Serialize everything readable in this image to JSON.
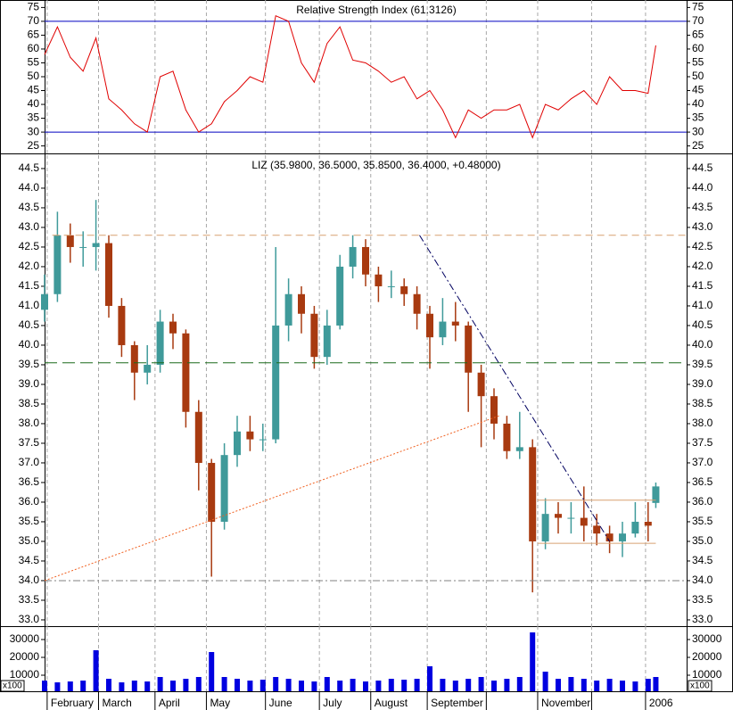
{
  "x_axis": {
    "x": [
      0,
      5,
      10,
      15,
      20,
      25,
      30,
      35,
      40,
      45,
      50,
      55,
      60,
      65,
      70,
      75,
      80,
      85,
      90,
      95,
      100,
      105,
      110,
      115,
      120,
      125,
      130,
      135,
      140,
      145,
      150,
      155,
      160,
      165,
      170,
      175,
      180,
      185,
      190,
      195,
      200,
      205,
      210,
      215,
      220,
      225,
      230,
      235,
      238
    ],
    "xlim": [
      0,
      250
    ],
    "xticks": [
      {
        "value": 1,
        "label": "February"
      },
      {
        "value": 21,
        "label": "March"
      },
      {
        "value": 43,
        "label": "April"
      },
      {
        "value": 63,
        "label": "May"
      },
      {
        "value": 86,
        "label": "June"
      },
      {
        "value": 107,
        "label": "July"
      },
      {
        "value": 127,
        "label": "August"
      },
      {
        "value": 149,
        "label": "September"
      },
      {
        "value": 172,
        "label": null
      },
      {
        "value": 192,
        "label": "November"
      },
      {
        "value": 213,
        "label": null
      },
      {
        "value": 234,
        "label": "2006"
      }
    ],
    "grid": true
  },
  "chart_data": [
    {
      "type": "line",
      "title": "Relative Strength Index (61.3126)",
      "color": "#e00000",
      "values": [
        58,
        68,
        57,
        52,
        64,
        42,
        38,
        33,
        30,
        50,
        52,
        38,
        30,
        33,
        41,
        45,
        50,
        48,
        72,
        70,
        55,
        48,
        62,
        68,
        56,
        55,
        52,
        48,
        50,
        42,
        45,
        38,
        28,
        38,
        35,
        38,
        38,
        40,
        28,
        40,
        38,
        42,
        45,
        40,
        50,
        45,
        45,
        44,
        61.3126
      ],
      "ref_lines": [
        70,
        30
      ],
      "ref_color": "#0000c0",
      "ylim": [
        22.3,
        77.7
      ],
      "yticks": [
        25,
        30,
        35,
        40,
        45,
        50,
        55,
        60,
        65,
        70,
        75
      ]
    },
    {
      "type": "candlestick",
      "title": "LIZ (35.9800, 36.5000, 35.8500, 36.4000, +0.48000)",
      "up_color": "#3f9a9a",
      "down_color": "#a83a10",
      "open": [
        40.9,
        41.3,
        42.8,
        42.5,
        42.5,
        42.6,
        41.0,
        40.0,
        39.3,
        39.5,
        40.6,
        40.3,
        38.3,
        37.0,
        35.5,
        37.2,
        37.8,
        37.6,
        37.6,
        40.5,
        41.3,
        40.8,
        39.7,
        40.5,
        42.0,
        42.5,
        41.8,
        41.5,
        41.5,
        41.3,
        40.8,
        40.2,
        40.6,
        40.5,
        39.3,
        38.7,
        38.0,
        37.3,
        37.4,
        35.0,
        35.7,
        35.6,
        35.6,
        35.4,
        35.2,
        35.0,
        35.2,
        35.5,
        35.98
      ],
      "high": [
        41.8,
        43.4,
        43.1,
        42.9,
        43.7,
        42.8,
        41.2,
        40.1,
        40.0,
        40.9,
        40.8,
        40.4,
        38.6,
        37.1,
        37.5,
        38.2,
        38.2,
        38.0,
        42.5,
        41.7,
        41.5,
        41.0,
        40.9,
        42.3,
        42.8,
        42.7,
        42.0,
        41.9,
        41.7,
        41.5,
        41.0,
        41.2,
        41.1,
        40.6,
        39.5,
        38.9,
        38.2,
        38.3,
        37.6,
        36.1,
        36.0,
        36.0,
        36.4,
        35.7,
        35.4,
        35.5,
        36.0,
        36.0,
        36.5
      ],
      "low": [
        40.6,
        41.1,
        42.1,
        42.0,
        41.9,
        40.7,
        39.7,
        38.6,
        39.0,
        39.3,
        39.9,
        37.9,
        36.3,
        34.1,
        35.3,
        36.9,
        37.3,
        37.3,
        37.5,
        40.1,
        40.3,
        39.4,
        39.5,
        40.4,
        41.7,
        41.5,
        41.1,
        41.2,
        41.0,
        40.4,
        39.4,
        40.0,
        40.1,
        38.3,
        37.4,
        37.6,
        37.1,
        37.1,
        33.7,
        34.8,
        35.2,
        35.2,
        35.0,
        34.9,
        34.7,
        34.6,
        35.1,
        35.0,
        35.85
      ],
      "close": [
        41.3,
        42.8,
        42.5,
        42.5,
        42.6,
        41.0,
        40.0,
        39.3,
        39.5,
        40.6,
        40.3,
        38.3,
        37.0,
        35.5,
        37.2,
        37.8,
        37.6,
        37.6,
        40.5,
        41.3,
        40.8,
        39.7,
        40.5,
        42.0,
        42.5,
        41.8,
        41.5,
        41.5,
        41.3,
        40.8,
        40.2,
        40.6,
        40.5,
        39.3,
        38.7,
        38.0,
        37.3,
        37.4,
        35.0,
        35.7,
        35.6,
        35.6,
        35.4,
        35.2,
        35.0,
        35.2,
        35.5,
        35.4,
        36.4
      ],
      "lines": [
        {
          "x": [
            3,
            250
          ],
          "y": [
            42.8,
            42.8
          ],
          "color": "#d8a070",
          "style": "dashed"
        },
        {
          "x": [
            0,
            250
          ],
          "y": [
            39.55,
            39.55
          ],
          "color": "#1a6a1a",
          "style": "longdash"
        },
        {
          "x": [
            0,
            250
          ],
          "y": [
            34.0,
            34.0
          ],
          "color": "#808080",
          "style": "dashdot"
        },
        {
          "x": [
            192,
            238
          ],
          "y": [
            36.05,
            36.05
          ],
          "color": "#d8a070",
          "style": "solid"
        },
        {
          "x": [
            192,
            238
          ],
          "y": [
            34.95,
            34.95
          ],
          "color": "#d8a070",
          "style": "solid"
        },
        {
          "x": [
            0,
            177
          ],
          "y": [
            34.0,
            38.2
          ],
          "color": "#f06020",
          "style": "dotted"
        },
        {
          "x": [
            146,
            220
          ],
          "y": [
            42.8,
            35.0
          ],
          "color": "#000060",
          "style": "dashdot"
        }
      ],
      "ylim": [
        32.84,
        44.84
      ],
      "yticks": [
        {
          "value": 33,
          "label": "33.0"
        },
        33.5,
        {
          "value": 34,
          "label": "34.0"
        },
        34.5,
        {
          "value": 35,
          "label": "35.0"
        },
        35.5,
        {
          "value": 36,
          "label": "36.0"
        },
        36.5,
        {
          "value": 37,
          "label": "37.0"
        },
        37.5,
        {
          "value": 38,
          "label": "38.0"
        },
        38.5,
        {
          "value": 39,
          "label": "39.0"
        },
        39.5,
        {
          "value": 40,
          "label": "40.0"
        },
        40.5,
        {
          "value": 41,
          "label": "41.0"
        },
        41.5,
        {
          "value": 42,
          "label": "42.0"
        },
        42.5,
        {
          "value": 43,
          "label": "43.0"
        },
        43.5,
        {
          "value": 44,
          "label": "44.0"
        },
        44.5
      ]
    },
    {
      "type": "bar",
      "color": "#0000e0",
      "values": [
        7000,
        6000,
        6500,
        7000,
        24000,
        8000,
        6000,
        7000,
        6500,
        9000,
        7000,
        8000,
        9000,
        23000,
        9000,
        8000,
        7000,
        7500,
        9000,
        8000,
        7000,
        6500,
        9000,
        7000,
        8000,
        6500,
        7000,
        8000,
        7500,
        8000,
        15000,
        8000,
        7000,
        8000,
        9000,
        7000,
        8000,
        9000,
        34000,
        12000,
        8000,
        9000,
        8000,
        7000,
        8000,
        7000,
        6500,
        8000,
        9000
      ],
      "unit_label": "x100",
      "ylim": [
        1000,
        37500
      ],
      "yticks": [
        10000,
        20000,
        30000
      ]
    }
  ]
}
